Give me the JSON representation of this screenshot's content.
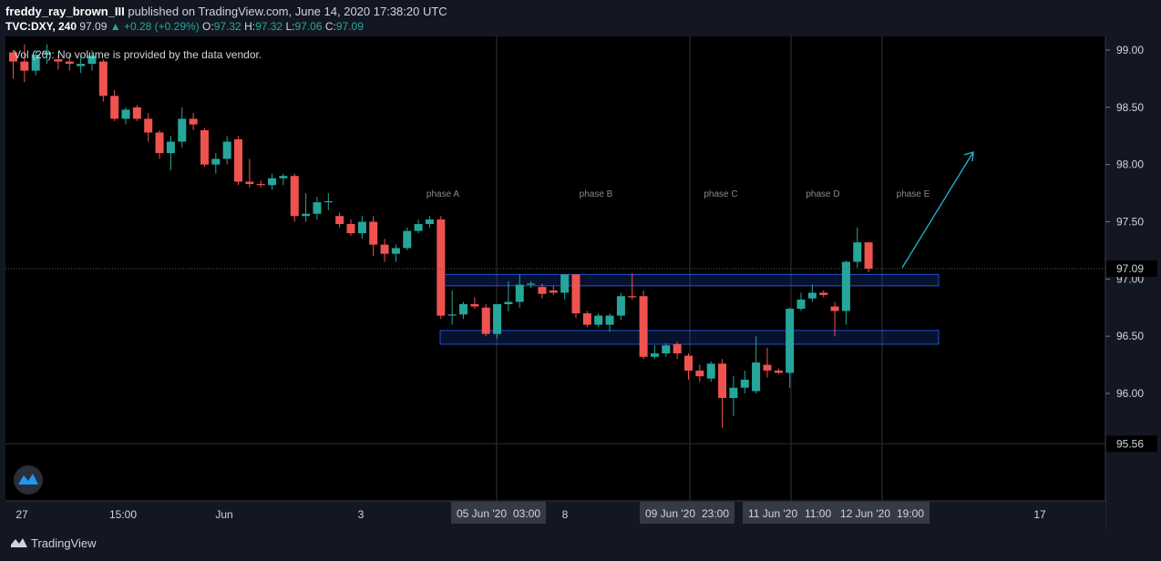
{
  "header": {
    "author": "freddy_ray_brown_III",
    "published_text": "published on TradingView.com, June 14, 2020 17:38:20 UTC",
    "symbol": "TVC:DXY, 240",
    "price": "97.09",
    "change": "▲ +0.28 (+0.29%)",
    "o_label": "O:",
    "o_value": "97.32",
    "h_label": "H:",
    "h_value": "97.32",
    "l_label": "L:",
    "l_value": "97.06",
    "c_label": "C:",
    "c_value": "97.09"
  },
  "volume_note": "Vol (20): No volume is provided by the data vendor.",
  "price_axis": {
    "ticks": [
      "99.00",
      "98.50",
      "98.00",
      "97.50",
      "97.00",
      "96.50",
      "96.00",
      "95.56"
    ],
    "current_price": "97.09",
    "low_marker": "95.56"
  },
  "time_axis": {
    "ticks": [
      "27",
      "15:00",
      "Jun",
      "3",
      "8",
      "17"
    ],
    "highlighted": [
      "05 Jun '20",
      "03:00",
      "09 Jun '20",
      "23:00",
      "11 Jun '20",
      "11:00",
      "12 Jun '20",
      "19:00"
    ]
  },
  "phases": [
    "phase A",
    "phase B",
    "phase C",
    "phase D",
    "phase E"
  ],
  "footer": {
    "brand": "TradingView"
  },
  "colors": {
    "up": "#26a69a",
    "down": "#ef5350",
    "background": "#000000",
    "zone": "#2962ff"
  },
  "chart_data": {
    "type": "candlestick",
    "series": [
      {
        "values": [
          [
            98.98,
            99.0,
            98.75,
            98.9
          ],
          [
            98.9,
            99.05,
            98.72,
            98.82
          ],
          [
            98.82,
            99.0,
            98.78,
            98.96
          ],
          [
            98.96,
            99.05,
            98.88,
            98.98
          ],
          [
            98.92,
            98.95,
            98.83,
            98.9
          ],
          [
            98.9,
            98.96,
            98.82,
            98.88
          ],
          [
            98.86,
            98.95,
            98.8,
            98.88
          ],
          [
            98.88,
            99.0,
            98.82,
            98.95
          ],
          [
            98.9,
            98.92,
            98.55,
            98.6
          ],
          [
            98.6,
            98.65,
            98.38,
            98.4
          ],
          [
            98.4,
            98.5,
            98.35,
            98.48
          ],
          [
            98.5,
            98.52,
            98.38,
            98.4
          ],
          [
            98.4,
            98.45,
            98.2,
            98.28
          ],
          [
            98.28,
            98.3,
            98.05,
            98.1
          ],
          [
            98.1,
            98.25,
            97.95,
            98.2
          ],
          [
            98.2,
            98.5,
            98.15,
            98.4
          ],
          [
            98.4,
            98.45,
            98.3,
            98.35
          ],
          [
            98.3,
            98.32,
            97.98,
            98.0
          ],
          [
            98.0,
            98.1,
            97.92,
            98.05
          ],
          [
            98.05,
            98.25,
            98.0,
            98.2
          ],
          [
            98.22,
            98.25,
            97.82,
            97.85
          ],
          [
            97.85,
            98.05,
            97.8,
            97.83
          ],
          [
            97.83,
            97.86,
            97.8,
            97.82
          ],
          [
            97.82,
            97.92,
            97.78,
            97.88
          ],
          [
            97.88,
            97.92,
            97.82,
            97.9
          ],
          [
            97.9,
            97.92,
            97.5,
            97.55
          ],
          [
            97.55,
            97.75,
            97.5,
            97.57
          ],
          [
            97.57,
            97.72,
            97.52,
            97.67
          ],
          [
            97.67,
            97.75,
            97.6,
            97.68
          ],
          [
            97.55,
            97.58,
            97.45,
            97.48
          ],
          [
            97.48,
            97.52,
            97.38,
            97.4
          ],
          [
            97.4,
            97.55,
            97.35,
            97.5
          ],
          [
            97.5,
            97.55,
            97.2,
            97.3
          ],
          [
            97.3,
            97.35,
            97.15,
            97.22
          ],
          [
            97.22,
            97.3,
            97.15,
            97.27
          ],
          [
            97.27,
            97.45,
            97.25,
            97.42
          ],
          [
            97.42,
            97.52,
            97.4,
            97.48
          ],
          [
            97.48,
            97.55,
            97.45,
            97.52
          ],
          [
            97.52,
            97.55,
            96.65,
            96.68
          ],
          [
            96.68,
            96.9,
            96.6,
            96.69
          ],
          [
            96.69,
            96.8,
            96.65,
            96.78
          ],
          [
            96.78,
            96.84,
            96.74,
            96.76
          ],
          [
            96.75,
            96.78,
            96.5,
            96.52
          ],
          [
            96.52,
            96.78,
            96.48,
            96.78
          ],
          [
            96.78,
            96.98,
            96.72,
            96.8
          ],
          [
            96.8,
            97.04,
            96.75,
            96.95
          ],
          [
            96.95,
            96.98,
            96.92,
            96.96
          ],
          [
            96.93,
            96.96,
            96.83,
            96.87
          ],
          [
            96.9,
            96.94,
            96.86,
            96.88
          ],
          [
            96.88,
            97.04,
            96.82,
            97.04
          ],
          [
            97.04,
            97.04,
            96.66,
            96.7
          ],
          [
            96.7,
            96.72,
            96.58,
            96.6
          ],
          [
            96.6,
            96.7,
            96.58,
            96.68
          ],
          [
            96.6,
            96.7,
            96.54,
            96.68
          ],
          [
            96.68,
            96.88,
            96.64,
            96.85
          ],
          [
            96.85,
            97.05,
            96.82,
            96.84
          ],
          [
            96.85,
            96.9,
            96.3,
            96.32
          ],
          [
            96.32,
            96.42,
            96.3,
            96.35
          ],
          [
            96.35,
            96.44,
            96.32,
            96.42
          ],
          [
            96.43,
            96.45,
            96.3,
            96.35
          ],
          [
            96.33,
            96.35,
            96.12,
            96.2
          ],
          [
            96.2,
            96.25,
            96.1,
            96.15
          ],
          [
            96.13,
            96.28,
            96.1,
            96.26
          ],
          [
            96.26,
            96.3,
            95.7,
            95.96
          ],
          [
            95.96,
            96.15,
            95.8,
            96.05
          ],
          [
            96.05,
            96.2,
            96.0,
            96.12
          ],
          [
            96.02,
            96.5,
            96.0,
            96.27
          ],
          [
            96.25,
            96.4,
            96.14,
            96.2
          ],
          [
            96.2,
            96.22,
            96.17,
            96.18
          ],
          [
            96.18,
            96.75,
            96.05,
            96.74
          ],
          [
            96.74,
            96.88,
            96.72,
            96.82
          ],
          [
            96.83,
            96.95,
            96.8,
            96.88
          ],
          [
            96.88,
            96.9,
            96.84,
            96.86
          ],
          [
            96.76,
            96.8,
            96.5,
            96.72
          ],
          [
            96.72,
            97.16,
            96.6,
            97.15
          ],
          [
            97.15,
            97.45,
            97.1,
            97.32
          ],
          [
            97.32,
            97.32,
            97.06,
            97.09
          ]
        ]
      }
    ],
    "ylim": [
      95.56,
      99.0
    ],
    "annotations": [
      "phase A",
      "phase B",
      "phase C",
      "phase D",
      "phase E"
    ]
  }
}
